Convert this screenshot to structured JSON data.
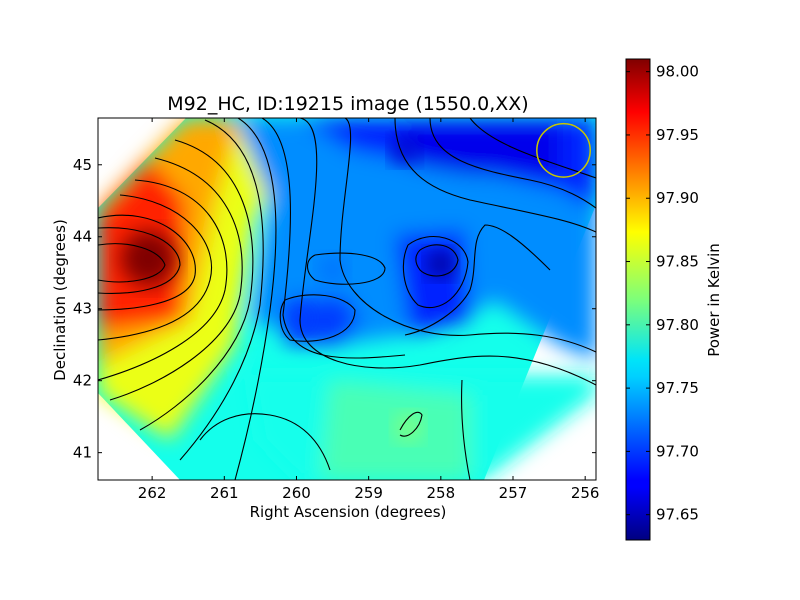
{
  "chart_data": {
    "type": "heatmap",
    "title": "M92_HC, ID:19215 image (1550.0,XX)",
    "xlabel": "Right Ascension (degrees)",
    "ylabel": "Declination (degrees)",
    "xlim": [
      262.75,
      255.85
    ],
    "ylim": [
      40.62,
      45.65
    ],
    "x_ticks": [
      262,
      261,
      260,
      259,
      258,
      257,
      256
    ],
    "x_tick_labels": [
      "262",
      "261",
      "260",
      "259",
      "258",
      "257",
      "256"
    ],
    "y_ticks": [
      41,
      42,
      43,
      44,
      45
    ],
    "y_tick_labels": [
      "41",
      "42",
      "43",
      "44",
      "45"
    ],
    "colorbar": {
      "label": "Power in Kelvin",
      "range": [
        97.63,
        98.01
      ],
      "ticks": [
        97.65,
        97.7,
        97.75,
        97.8,
        97.85,
        97.9,
        97.95,
        98.0
      ],
      "tick_labels": [
        "97.65",
        "97.70",
        "97.75",
        "97.80",
        "97.85",
        "97.90",
        "97.95",
        "98.00"
      ],
      "colormap": "jet"
    },
    "field_shape": "diamond",
    "contour_color": "#000000",
    "features": [
      {
        "kind": "max",
        "ra": 262.05,
        "dec": 43.7,
        "value": 98.01
      },
      {
        "kind": "min",
        "ra": 258.0,
        "dec": 43.62,
        "value": 97.64
      },
      {
        "kind": "min",
        "ra": 258.5,
        "dec": 45.2,
        "value": 97.66
      },
      {
        "kind": "local-min",
        "ra": 259.95,
        "dec": 42.87,
        "value": 97.7
      },
      {
        "kind": "local-min",
        "ra": 259.5,
        "dec": 43.55,
        "value": 97.72
      },
      {
        "kind": "local-max",
        "ra": 258.45,
        "dec": 41.35,
        "value": 97.82
      }
    ],
    "beam_marker": {
      "ra": 256.3,
      "dec": 45.2,
      "radius_deg": 0.37,
      "color": "#c8c800"
    }
  }
}
